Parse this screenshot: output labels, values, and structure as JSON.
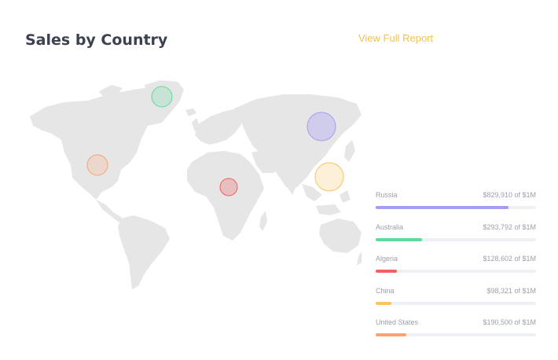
{
  "header": {
    "title": "Sales by Country",
    "link_label": "View Full Report"
  },
  "colors": {
    "title": "#3c4150",
    "link": "#f6c24a",
    "map_land": "#e6e6e6",
    "track": "#eef0f4"
  },
  "countries": [
    {
      "name": "Russia",
      "value": "$829,910 of $1M",
      "progress": 0.83,
      "color": "#a59cf3"
    },
    {
      "name": "Australia",
      "value": "$293,792 of $1M",
      "progress": 0.29,
      "color": "#5ddb9b"
    },
    {
      "name": "Algeria",
      "value": "$128,602 of $1M",
      "progress": 0.13,
      "color": "#f26262"
    },
    {
      "name": "China",
      "value": "$98,321 of $1M",
      "progress": 0.1,
      "color": "#f9c462"
    },
    {
      "name": "United States",
      "value": "$190,500 of $1M",
      "progress": 0.19,
      "color": "#fda26e"
    }
  ],
  "map_markers": [
    {
      "region": "Greenland",
      "color": "#5ddb9b"
    },
    {
      "region": "Russia",
      "color": "#a59cf3"
    },
    {
      "region": "United States",
      "color": "#fda26e"
    },
    {
      "region": "Algeria",
      "color": "#f26262"
    },
    {
      "region": "China",
      "color": "#f9c462"
    }
  ]
}
